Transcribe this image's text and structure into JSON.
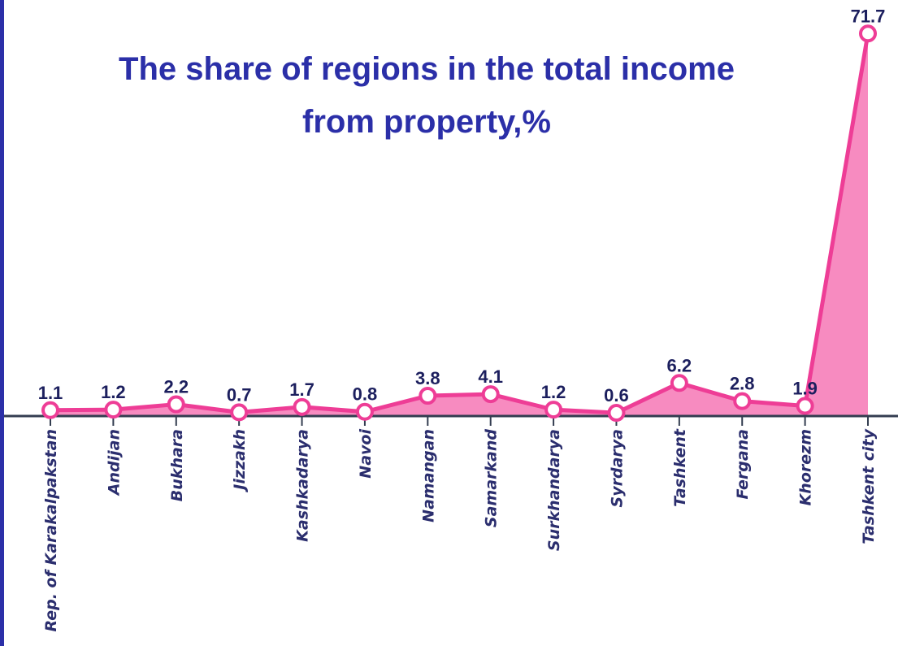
{
  "chart_data": {
    "type": "area",
    "title": [
      "The share of regions in the total income",
      "from property,%"
    ],
    "categories": [
      "Rep. of Karakalpakstan",
      "Andijan",
      "Bukhara",
      "Jizzakh",
      "Kashkadarya",
      "Navoi",
      "Namangan",
      "Samarkand",
      "Surkhandarya",
      "Syrdarya",
      "Tashkent",
      "Fergana",
      "Khorezm",
      "Tashkent city"
    ],
    "values": [
      1.1,
      1.2,
      2.2,
      0.7,
      1.7,
      0.8,
      3.8,
      4.1,
      1.2,
      0.6,
      6.2,
      2.8,
      1.9,
      71.7
    ],
    "color": "#ee3d96",
    "fill": "#f78bc0",
    "ylim": [
      0,
      75
    ]
  }
}
